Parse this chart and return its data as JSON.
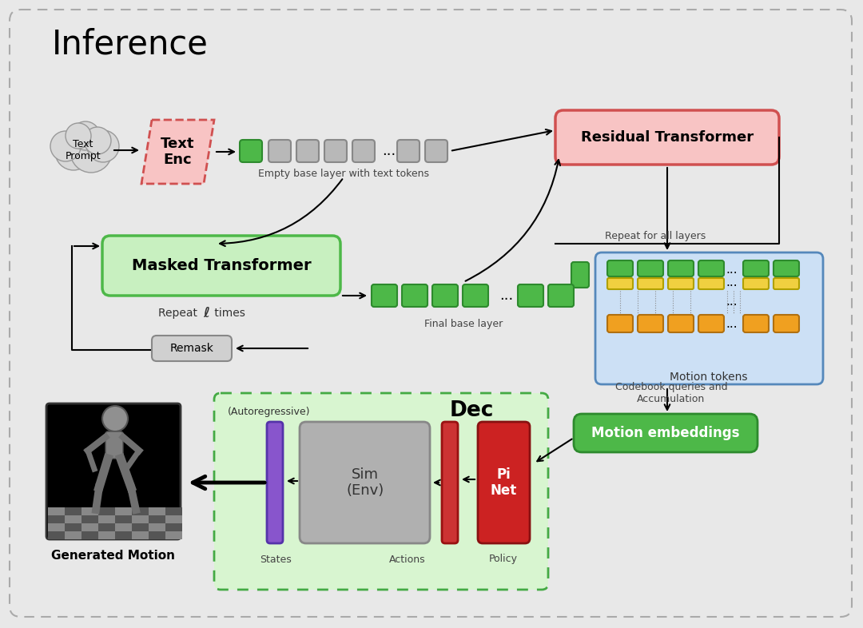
{
  "title": "Inference",
  "bg_color": "#e8e8e8",
  "colors": {
    "green": "#4db848",
    "green_dark": "#2d8a2d",
    "green_light": "#c8f0c0",
    "pink_light": "#f8c4c4",
    "pink_border": "#d05050",
    "gray_token": "#b8b8b8",
    "gray_border": "#888888",
    "gray_box": "#b0b0b0",
    "blue_bg": "#cce0f5",
    "blue_border": "#5588bb",
    "orange": "#f0a020",
    "orange_dark": "#b07010",
    "yellow": "#f0d040",
    "yellow_dark": "#b0a000",
    "purple": "#8855cc",
    "purple_dark": "#5533aa",
    "red": "#cc2222",
    "red_dark": "#881111",
    "white": "#ffffff",
    "black": "#000000",
    "light_green_bg": "#d8f5d0",
    "dashed_green_border": "#44aa44"
  }
}
